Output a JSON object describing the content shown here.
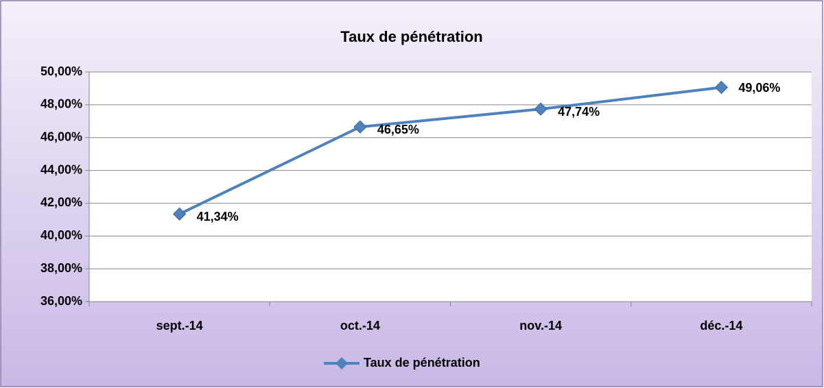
{
  "chart_data": {
    "type": "line",
    "title": "Taux de pénétration",
    "categories": [
      "sept.-14",
      "oct.-14",
      "nov.-14",
      "déc.-14"
    ],
    "series": [
      {
        "name": "Taux de pénétration",
        "color": "#4f81bd",
        "values": [
          41.34,
          46.65,
          47.74,
          49.06
        ],
        "value_labels": [
          "41,34%",
          "46,65%",
          "47,74%",
          "49,06%"
        ]
      }
    ],
    "ylim": [
      36,
      50
    ],
    "yticks": [
      {
        "value": 36,
        "label": "36,00%"
      },
      {
        "value": 38,
        "label": "38,00%"
      },
      {
        "value": 40,
        "label": "40,00%"
      },
      {
        "value": 42,
        "label": "42,00%"
      },
      {
        "value": 44,
        "label": "44,00%"
      },
      {
        "value": 46,
        "label": "46,00%"
      },
      {
        "value": 48,
        "label": "48,00%"
      },
      {
        "value": 50,
        "label": "50,00%"
      }
    ],
    "grid": true,
    "legend": "bottom"
  }
}
